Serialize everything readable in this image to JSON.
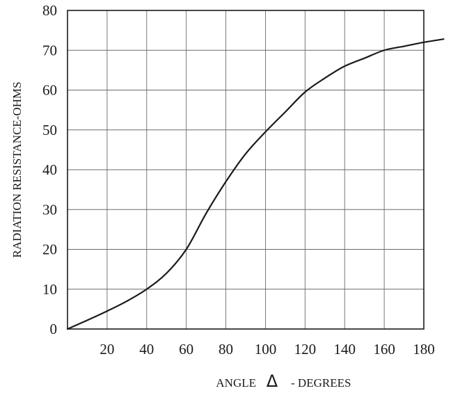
{
  "chart_data": {
    "type": "line",
    "title": "",
    "xlabel": {
      "prefix": "ANGLE",
      "symbol": "Δ",
      "suffix": "- DEGREES"
    },
    "ylabel": "RADIATION RESISTANCE-OHMS",
    "xlim": [
      0,
      180
    ],
    "ylim": [
      0,
      80
    ],
    "x_ticks": [
      20,
      40,
      60,
      80,
      100,
      120,
      140,
      160,
      180
    ],
    "y_ticks": [
      0,
      10,
      20,
      30,
      40,
      50,
      60,
      70,
      80
    ],
    "grid": true,
    "legend": "none",
    "series": [
      {
        "x": [
          0,
          10,
          20,
          30,
          40,
          50,
          60,
          70,
          80,
          90,
          100,
          110,
          120,
          130,
          140,
          150,
          160,
          170,
          180,
          190
        ],
        "y": [
          0,
          2.2,
          4.5,
          7,
          10,
          14,
          20,
          29,
          37,
          44,
          49.5,
          54.5,
          59.5,
          63,
          66,
          68,
          70,
          71,
          72,
          72.8
        ],
        "color": "#1a1a1a"
      }
    ]
  }
}
